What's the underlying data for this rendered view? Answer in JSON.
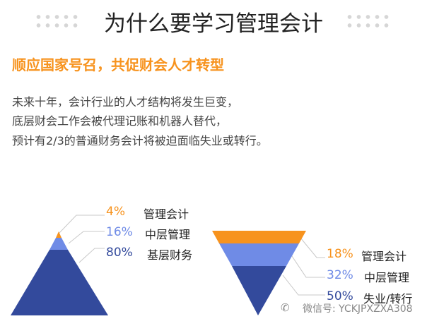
{
  "title": "为什么要学习管理会计",
  "subtitle": "顺应国家号召，共促财会人才转型",
  "paragraph": [
    "未来十年，会计行业的人才结构将发生巨变，",
    "底层财会工作会被代理记账和机器人替代，",
    "预计有2/3的普通财务会计将被迫面临失业或转行。"
  ],
  "colors": {
    "orange": "#f7931e",
    "light": "#6f8be6",
    "dark": "#334a9c"
  },
  "pyramid": [
    {
      "pct": "4%",
      "label": "管理会计",
      "value": 4
    },
    {
      "pct": "16%",
      "label": "中层管理",
      "value": 16
    },
    {
      "pct": "80%",
      "label": "基层财务",
      "value": 80
    }
  ],
  "funnel": [
    {
      "pct": "18%",
      "label": "管理会计",
      "value": 18
    },
    {
      "pct": "32%",
      "label": "中层管理",
      "value": 32
    },
    {
      "pct": "50%",
      "label": "失业/转行",
      "value": 50
    }
  ],
  "watermark": "微信号: YCKJPXZXA308",
  "watermark_icon": "wechat-icon"
}
